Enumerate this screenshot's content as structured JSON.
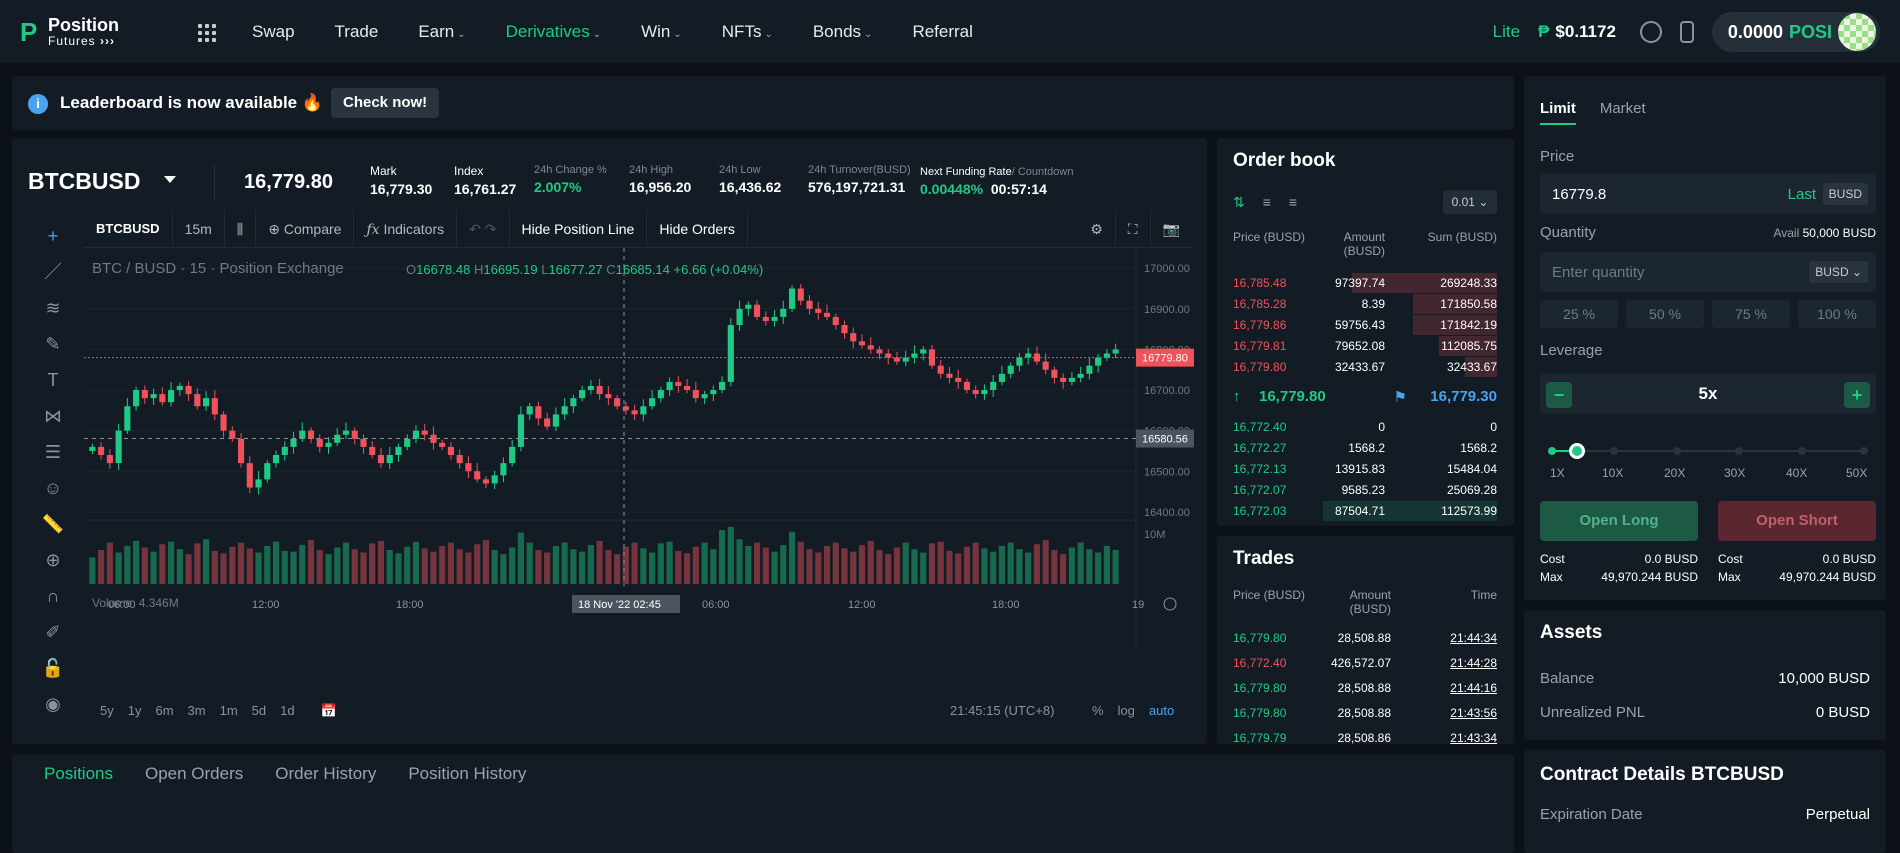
{
  "nav": {
    "logo_title": "Position",
    "logo_sub": "Futures",
    "logo_arrows": "›››",
    "menu": [
      {
        "label": "Swap",
        "dropdown": false,
        "active": false
      },
      {
        "label": "Trade",
        "dropdown": false,
        "active": false
      },
      {
        "label": "Earn",
        "dropdown": true,
        "active": false
      },
      {
        "label": "Derivatives",
        "dropdown": true,
        "active": true
      },
      {
        "label": "Win",
        "dropdown": true,
        "active": false
      },
      {
        "label": "NFTs",
        "dropdown": true,
        "active": false
      },
      {
        "label": "Bonds",
        "dropdown": true,
        "active": false
      },
      {
        "label": "Referral",
        "dropdown": false,
        "active": false
      }
    ],
    "lite": "Lite",
    "posi_price": "$0.1172",
    "wallet_balance": "0.0000",
    "wallet_token": "POSI"
  },
  "banner": {
    "text": "Leaderboard is now available 🔥",
    "button": "Check now!"
  },
  "ticker": {
    "symbol": "BTCBUSD",
    "last_price": "16,779.80",
    "stats": [
      {
        "label": "Mark",
        "value": "16,779.30",
        "color": "white",
        "bold_label": true
      },
      {
        "label": "Index",
        "value": "16,761.27",
        "color": "white",
        "bold_label": true
      },
      {
        "label": "24h Change %",
        "value": "2.007%",
        "color": "green",
        "bold_label": false
      },
      {
        "label": "24h High",
        "value": "16,956.20",
        "color": "white",
        "bold_label": false
      },
      {
        "label": "24h Low",
        "value": "16,436.62",
        "color": "white",
        "bold_label": false
      },
      {
        "label": "24h Turnover(BUSD)",
        "value": "576,197,721.31",
        "color": "white",
        "bold_label": false
      }
    ],
    "funding_label": "Next Funding Rate",
    "countdown_label": "/ Countdown",
    "funding_rate": "0.00448%",
    "countdown": "00:57:14"
  },
  "tv": {
    "toolbar": {
      "symbol": "BTCBUSD",
      "interval": "15m",
      "compare": "Compare",
      "indicators": "Indicators",
      "hide_position_line": "Hide Position Line",
      "hide_orders": "Hide Orders"
    },
    "legend": "BTC / BUSD · 15 · Position Exchange",
    "ohlc": {
      "o": "16678.48",
      "h": "16695.19",
      "l": "16677.27",
      "c": "16685.14",
      "change": "+6.66 (+0.04%)"
    },
    "volume_label": "Volume",
    "volume_value": "4.346M",
    "price_tag_last": "16779.80",
    "price_tag_cursor": "16580.56",
    "crosshair_date": "18 Nov '22",
    "crosshair_time": "02:45",
    "y_ticks": [
      "17000.00",
      "16900.00",
      "16800.00",
      "16700.00",
      "16600.00",
      "16500.00",
      "16400.00"
    ],
    "vol_tick": "10M",
    "x_ticks": [
      "06:00",
      "12:00",
      "18:00",
      "18",
      "06:00",
      "12:00",
      "18:00",
      "19"
    ],
    "timeframes": [
      "5y",
      "1y",
      "6m",
      "3m",
      "1m",
      "5d",
      "1d"
    ],
    "clock": "21:45:15 (UTC+8)",
    "opt_pct": "%",
    "opt_log": "log",
    "opt_auto": "auto"
  },
  "chart_data": {
    "type": "candlestick",
    "title": "",
    "ylim": [
      16380,
      17030
    ],
    "series_note": "",
    "up_color": "#1fca84",
    "down_color": "#f0525b",
    "closes": [
      16560,
      16540,
      16520,
      16600,
      16660,
      16700,
      16680,
      16690,
      16670,
      16700,
      16710,
      16690,
      16660,
      16680,
      16640,
      16600,
      16580,
      16520,
      16460,
      16480,
      16520,
      16540,
      16560,
      16580,
      16600,
      16580,
      16560,
      16570,
      16590,
      16600,
      16580,
      16560,
      16540,
      16520,
      16540,
      16560,
      16580,
      16600,
      16590,
      16570,
      16560,
      16540,
      16520,
      16500,
      16480,
      16470,
      16490,
      16520,
      16560,
      16640,
      16660,
      16630,
      16610,
      16640,
      16660,
      16680,
      16700,
      16710,
      16690,
      16680,
      16660,
      16650,
      16640,
      16660,
      16680,
      16700,
      16720,
      16710,
      16700,
      16680,
      16690,
      16700,
      16720,
      16860,
      16900,
      16910,
      16880,
      16870,
      16880,
      16900,
      16950,
      16920,
      16900,
      16890,
      16880,
      16860,
      16840,
      16820,
      16810,
      16800,
      16790,
      16780,
      16770,
      16780,
      16790,
      16800,
      16760,
      16740,
      16730,
      16720,
      16700,
      16690,
      16700,
      16720,
      16740,
      16760,
      16780,
      16790,
      16770,
      16750,
      16730,
      16720,
      16730,
      16740,
      16760,
      16780,
      16790,
      16800
    ],
    "volumes": [
      3.2,
      4.1,
      5.0,
      3.8,
      4.6,
      5.2,
      4.4,
      3.9,
      4.8,
      5.1,
      4.2,
      3.6,
      4.9,
      5.4,
      4.0,
      3.7,
      4.5,
      5.0,
      4.3,
      3.8,
      4.6,
      5.1,
      4.0,
      3.9,
      4.7,
      5.3,
      4.1,
      3.6,
      4.4,
      5.0,
      4.2,
      3.8,
      4.9,
      5.2,
      4.1,
      3.7,
      4.5,
      5.1,
      4.3,
      3.9,
      4.6,
      5.0,
      4.2,
      3.8,
      4.8,
      5.3,
      4.1,
      3.6,
      4.4,
      6.2,
      5.0,
      4.1,
      3.8,
      4.6,
      5.0,
      4.2,
      3.9,
      4.7,
      5.2,
      4.1,
      3.6,
      4.5,
      5.0,
      4.3,
      3.8,
      4.9,
      5.1,
      4.0,
      3.7,
      4.5,
      5.0,
      4.2,
      6.5,
      6.9,
      5.4,
      4.6,
      5.0,
      4.4,
      3.9,
      4.7,
      6.3,
      5.1,
      4.2,
      3.8,
      4.6,
      5.0,
      4.3,
      3.9,
      4.7,
      5.2,
      4.1,
      3.6,
      4.4,
      5.0,
      4.2,
      3.8,
      4.9,
      5.1,
      4.0,
      3.7,
      4.5,
      5.0,
      4.3,
      3.9,
      4.6,
      5.0,
      4.2,
      3.8,
      4.8,
      5.3,
      4.1,
      3.6,
      4.4,
      5.0,
      4.2,
      3.8,
      4.6,
      4.1
    ]
  },
  "orderbook": {
    "title": "Order book",
    "step": "0.01",
    "headers": [
      "Price (BUSD)",
      "Amount (BUSD)",
      "Sum (BUSD)"
    ],
    "asks": [
      {
        "price": "16,785.48",
        "amount": "97397.74",
        "sum": "269248.33",
        "depth": 0.55
      },
      {
        "price": "16,785.28",
        "amount": "8.39",
        "sum": "171850.58",
        "depth": 0.32
      },
      {
        "price": "16,779.86",
        "amount": "59756.43",
        "sum": "171842.19",
        "depth": 0.32
      },
      {
        "price": "16,779.81",
        "amount": "79652.08",
        "sum": "112085.75",
        "depth": 0.22
      },
      {
        "price": "16,779.80",
        "amount": "32433.67",
        "sum": "32433.67",
        "depth": 0.12
      }
    ],
    "mid_price": "16,779.80",
    "mark_price": "16,779.30",
    "bids": [
      {
        "price": "16,772.40",
        "amount": "0",
        "sum": "0",
        "depth": 0.0
      },
      {
        "price": "16,772.27",
        "amount": "1568.2",
        "sum": "1568.2",
        "depth": 0.0
      },
      {
        "price": "16,772.13",
        "amount": "13915.83",
        "sum": "15484.04",
        "depth": 0.0
      },
      {
        "price": "16,772.07",
        "amount": "9585.23",
        "sum": "25069.28",
        "depth": 0.0
      },
      {
        "price": "16,772.03",
        "amount": "87504.71",
        "sum": "112573.99",
        "depth": 0.66
      }
    ]
  },
  "trades": {
    "title": "Trades",
    "headers": [
      "Price (BUSD)",
      "Amount (BUSD)",
      "Time"
    ],
    "rows": [
      {
        "price": "16,779.80",
        "amount": "28,508.88",
        "time": "21:44:34",
        "side": "buy"
      },
      {
        "price": "16,772.40",
        "amount": "426,572.07",
        "time": "21:44:28",
        "side": "sell"
      },
      {
        "price": "16,779.80",
        "amount": "28,508.88",
        "time": "21:44:16",
        "side": "buy"
      },
      {
        "price": "16,779.80",
        "amount": "28,508.88",
        "time": "21:43:56",
        "side": "buy"
      },
      {
        "price": "16,779.79",
        "amount": "28,508.86",
        "time": "21:43:34",
        "side": "buy"
      }
    ]
  },
  "order_form": {
    "tab_limit": "Limit",
    "tab_market": "Market",
    "price_label": "Price",
    "price_value": "16779.8",
    "price_last": "Last",
    "price_unit": "BUSD",
    "qty_label": "Quantity",
    "avail_label": "Avail",
    "avail_value": "50,000 BUSD",
    "qty_placeholder": "Enter quantity",
    "qty_unit": "BUSD",
    "percents": [
      "25 %",
      "50 %",
      "75 %",
      "100 %"
    ],
    "leverage_label": "Leverage",
    "leverage_value": "5x",
    "leverage_level": 0.08,
    "leverage_ticks": [
      "1X",
      "10X",
      "20X",
      "30X",
      "40X",
      "50X"
    ],
    "open_long": "Open Long",
    "open_short": "Open Short",
    "long_cost_label": "Cost",
    "long_cost": "0.0 BUSD",
    "long_max_label": "Max",
    "long_max": "49,970.244 BUSD",
    "short_cost_label": "Cost",
    "short_cost": "0.0 BUSD",
    "short_max_label": "Max",
    "short_max": "49,970.244 BUSD"
  },
  "assets": {
    "title": "Assets",
    "balance_label": "Balance",
    "balance": "10,000  BUSD",
    "pnl_label": "Unrealized PNL",
    "pnl": "0 BUSD"
  },
  "positions": {
    "tabs": [
      "Positions",
      "Open Orders",
      "Order History",
      "Position History"
    ]
  },
  "contract": {
    "title": "Contract Details BTCBUSD",
    "expiration_label": "Expiration Date",
    "expiration": "Perpetual"
  }
}
